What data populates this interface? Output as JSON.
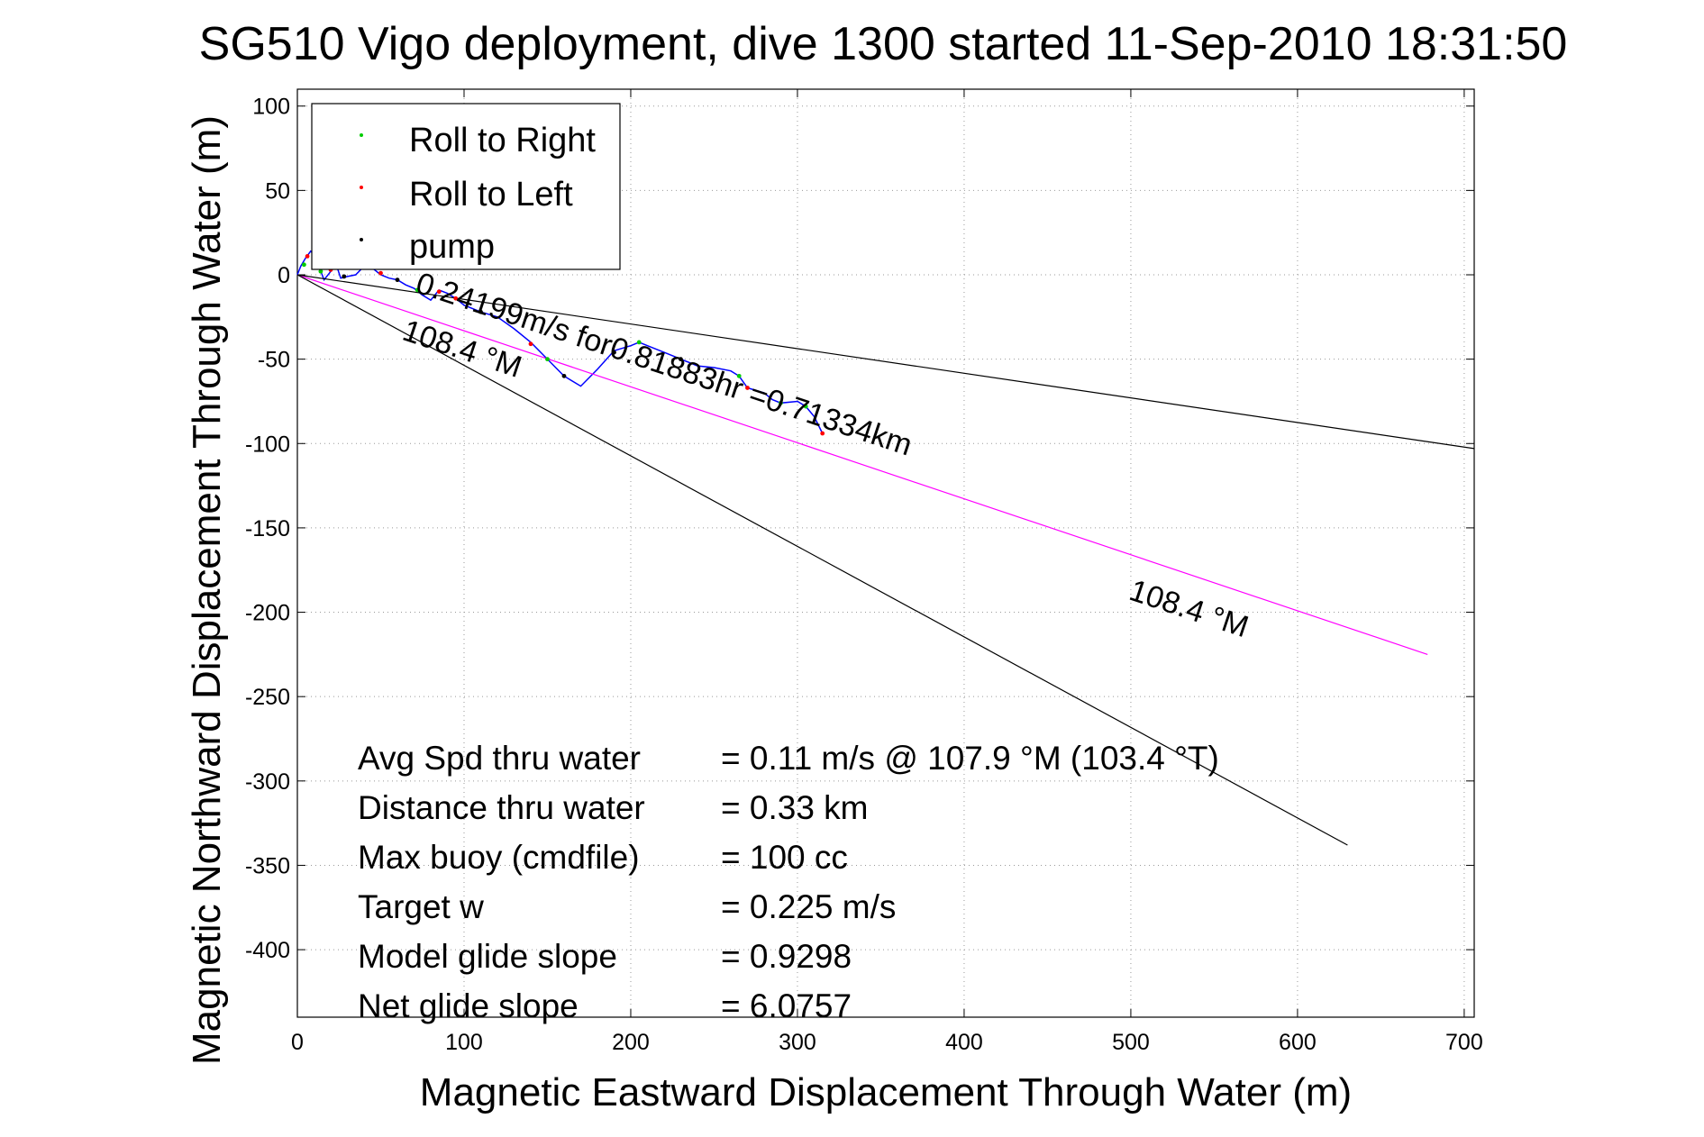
{
  "chart_data": {
    "type": "line",
    "title": "SG510 Vigo deployment, dive 1300 started 11-Sep-2010 18:31:50",
    "xlabel": "Magnetic Eastward Displacement Through Water (m)",
    "ylabel": "Magnetic Northward Displacement Through Water (m)",
    "xlim": [
      0,
      706
    ],
    "ylim": [
      -440,
      110
    ],
    "x_ticks": [
      0,
      100,
      200,
      300,
      400,
      500,
      600,
      700
    ],
    "y_ticks": [
      100,
      50,
      0,
      -50,
      -100,
      -150,
      -200,
      -250,
      -300,
      -350,
      -400
    ],
    "grid": true,
    "legend_position": "top-left",
    "legend": [
      {
        "label": "Roll to Right",
        "color": "#00cc00"
      },
      {
        "label": "Roll to Left",
        "color": "#ff0000"
      },
      {
        "label": "pump",
        "color": "#000000"
      }
    ],
    "series": [
      {
        "name": "",
        "color": "#0000ff",
        "x": [
          0,
          2,
          5,
          8,
          10,
          13,
          16,
          20,
          22,
          24,
          26,
          30,
          35,
          40,
          45,
          50,
          55,
          60,
          65,
          70,
          75,
          80,
          85,
          90,
          95,
          100,
          110,
          120,
          130,
          140,
          150,
          155,
          160,
          170,
          180,
          190,
          200,
          205,
          210,
          220,
          230,
          240,
          250,
          260,
          265,
          270,
          280,
          285,
          290,
          300,
          305,
          310,
          315
        ],
        "y": [
          0,
          5,
          10,
          14,
          12,
          5,
          -3,
          2,
          8,
          4,
          -2,
          -1,
          0,
          5,
          4,
          0,
          -2,
          -3,
          -6,
          -8,
          -12,
          -15,
          -9,
          -11,
          -14,
          -18,
          -22,
          -25,
          -32,
          -40,
          -50,
          -55,
          -60,
          -66,
          -56,
          -45,
          -42,
          -40,
          -42,
          -46,
          -50,
          -54,
          -55,
          -57,
          -60,
          -67,
          -70,
          -74,
          -76,
          -75,
          -78,
          -84,
          -94
        ],
        "markers": [
          {
            "x": 4,
            "y": 6,
            "kind": "right"
          },
          {
            "x": 6,
            "y": 11,
            "kind": "left"
          },
          {
            "x": 11,
            "y": 8,
            "kind": "right"
          },
          {
            "x": 14,
            "y": 2,
            "kind": "right"
          },
          {
            "x": 20,
            "y": 3,
            "kind": "left"
          },
          {
            "x": 25,
            "y": 6,
            "kind": "left"
          },
          {
            "x": 28,
            "y": -1,
            "kind": "pump"
          },
          {
            "x": 50,
            "y": 1,
            "kind": "left"
          },
          {
            "x": 60,
            "y": -3,
            "kind": "pump"
          },
          {
            "x": 72,
            "y": -9,
            "kind": "right"
          },
          {
            "x": 85,
            "y": -10,
            "kind": "left"
          },
          {
            "x": 95,
            "y": -14,
            "kind": "left"
          },
          {
            "x": 110,
            "y": -22,
            "kind": "pump"
          },
          {
            "x": 140,
            "y": -41,
            "kind": "left"
          },
          {
            "x": 150,
            "y": -50,
            "kind": "right"
          },
          {
            "x": 160,
            "y": -60,
            "kind": "pump"
          },
          {
            "x": 190,
            "y": -46,
            "kind": "pump"
          },
          {
            "x": 205,
            "y": -40,
            "kind": "right"
          },
          {
            "x": 230,
            "y": -50,
            "kind": "pump"
          },
          {
            "x": 265,
            "y": -60,
            "kind": "right"
          },
          {
            "x": 270,
            "y": -67,
            "kind": "left"
          },
          {
            "x": 290,
            "y": -76,
            "kind": "right"
          },
          {
            "x": 305,
            "y": -78,
            "kind": "right"
          },
          {
            "x": 315,
            "y": -94,
            "kind": "left"
          }
        ]
      },
      {
        "name": "",
        "color": "#ff00ff",
        "x": [
          0,
          678
        ],
        "y": [
          0,
          -225
        ]
      },
      {
        "name": "",
        "color": "#000000",
        "x": [
          0,
          706
        ],
        "y": [
          0,
          -103
        ]
      },
      {
        "name": "",
        "color": "#000000",
        "x": [
          0,
          630
        ],
        "y": [
          0,
          -338
        ]
      }
    ],
    "annotations": [
      {
        "text": "0.24199m/s for0.81883hr =0.71334km",
        "x": 70,
        "y": -10,
        "angle": 18.4
      },
      {
        "text": "108.4 °M",
        "x": 62,
        "y": -38,
        "angle": 18.4
      },
      {
        "text": "108.4 °M",
        "x": 498,
        "y": -192,
        "angle": 18.4
      }
    ],
    "stats": [
      {
        "label": "Avg Spd thru water",
        "value": "=  0.11 m/s @ 107.9 °M (103.4 °T)"
      },
      {
        "label": "Distance thru water",
        "value": "=  0.33 km"
      },
      {
        "label": "Max buoy (cmdfile)",
        "value": "= 100 cc"
      },
      {
        "label": "Target w",
        "value": "= 0.225 m/s"
      },
      {
        "label": "Model glide slope",
        "value": "= 0.9298"
      },
      {
        "label": "Net glide slope",
        "value": "= 6.0757"
      }
    ]
  }
}
